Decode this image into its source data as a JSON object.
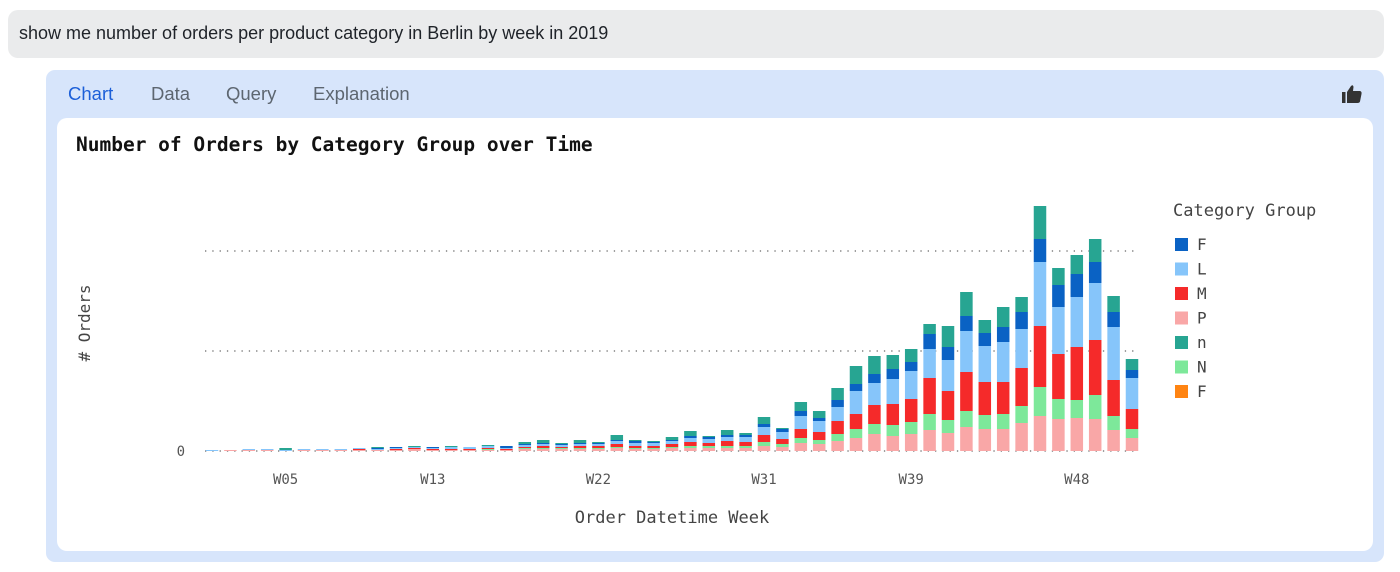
{
  "query": {
    "text": "show me number of orders per product category in Berlin by week in 2019"
  },
  "tabs": [
    {
      "label": "Chart",
      "active": true
    },
    {
      "label": "Data",
      "active": false
    },
    {
      "label": "Query",
      "active": false
    },
    {
      "label": "Explanation",
      "active": false
    }
  ],
  "feedback": {
    "icon": "thumbs-up-icon"
  },
  "colors": {
    "accent": "#1c5fd8",
    "panel": "#d7e5fb"
  },
  "chart_data": {
    "type": "bar",
    "stacked": true,
    "title": "Number of Orders by Category Group over Time",
    "xlabel": "Order Datetime Week",
    "ylabel": "# Orders",
    "x_tick_labels": [
      "W05",
      "W13",
      "W22",
      "W31",
      "W39",
      "W48"
    ],
    "y_tick_labels": [
      "0"
    ],
    "ylim": [
      0,
      250
    ],
    "gridlines": [
      100,
      200
    ],
    "grid": "dotted-horizontal",
    "legend": {
      "title": "Category Group",
      "position": "right"
    },
    "categories": [
      "W01",
      "W02",
      "W03",
      "W04",
      "W05",
      "W06",
      "W07",
      "W08",
      "W09",
      "W10",
      "W11",
      "W12",
      "W13",
      "W14",
      "W15",
      "W16",
      "W17",
      "W18",
      "W19",
      "W20",
      "W21",
      "W22",
      "W23",
      "W24",
      "W25",
      "W26",
      "W27",
      "W28",
      "W29",
      "W30",
      "W31",
      "W32",
      "W33",
      "W34",
      "W35",
      "W36",
      "W37",
      "W38",
      "W39",
      "W40",
      "W41",
      "W42",
      "W43",
      "W44",
      "W45",
      "W46",
      "W47",
      "W48",
      "W49",
      "W50",
      "W51"
    ],
    "legend_order": [
      5,
      4,
      3,
      1,
      6,
      2,
      0
    ],
    "series": [
      {
        "name": "F",
        "color": "#ff8412",
        "values": [
          0,
          0,
          0,
          0,
          0,
          0,
          0,
          0,
          0,
          0,
          0,
          0,
          0,
          0,
          0,
          0,
          0,
          0,
          0,
          0,
          0,
          0,
          0,
          0,
          0,
          0,
          0,
          0,
          0,
          0,
          0,
          0,
          0,
          0,
          0,
          0,
          0,
          0,
          0,
          0,
          0,
          0,
          0,
          0,
          0,
          0,
          0,
          0,
          0,
          0,
          0
        ]
      },
      {
        "name": "P",
        "color": "#f9a7a7",
        "values": [
          0,
          1,
          1,
          1,
          0,
          1,
          1,
          1,
          1,
          1,
          1,
          2,
          1,
          1,
          1,
          1,
          1,
          2,
          2,
          2,
          2,
          2,
          3,
          2,
          2,
          3,
          3,
          3,
          3,
          3,
          5,
          4,
          8,
          7,
          10,
          13,
          17,
          15,
          17,
          21,
          18,
          24,
          22,
          22,
          28,
          35,
          32,
          33,
          32,
          21,
          13
        ]
      },
      {
        "name": "N",
        "color": "#7de89a",
        "values": [
          0,
          0,
          0,
          0,
          0,
          0,
          0,
          0,
          0,
          0,
          0,
          0,
          0,
          0,
          0,
          1,
          0,
          1,
          1,
          1,
          1,
          1,
          1,
          1,
          1,
          1,
          2,
          2,
          2,
          2,
          4,
          3,
          5,
          4,
          7,
          9,
          10,
          11,
          12,
          16,
          13,
          16,
          14,
          15,
          17,
          29,
          20,
          18,
          24,
          14,
          9
        ]
      },
      {
        "name": "M",
        "color": "#f52a2a",
        "values": [
          0,
          0,
          0,
          0,
          0,
          0,
          0,
          0,
          1,
          0,
          1,
          1,
          1,
          1,
          1,
          1,
          1,
          1,
          2,
          1,
          2,
          2,
          3,
          2,
          2,
          3,
          4,
          3,
          5,
          4,
          7,
          5,
          9,
          8,
          13,
          15,
          19,
          21,
          23,
          36,
          29,
          39,
          33,
          32,
          38,
          61,
          45,
          53,
          55,
          36,
          20
        ]
      },
      {
        "name": "L",
        "color": "#86c5fa",
        "values": [
          1,
          0,
          1,
          1,
          1,
          1,
          1,
          1,
          1,
          1,
          1,
          1,
          1,
          2,
          2,
          2,
          1,
          2,
          2,
          2,
          2,
          2,
          3,
          3,
          3,
          3,
          4,
          4,
          4,
          5,
          8,
          7,
          13,
          11,
          14,
          23,
          22,
          25,
          28,
          29,
          31,
          41,
          36,
          40,
          39,
          64,
          47,
          50,
          57,
          53,
          31
        ]
      },
      {
        "name": "F",
        "color": "#0a62c4",
        "values": [
          0,
          0,
          0,
          0,
          0,
          0,
          0,
          0,
          0,
          1,
          1,
          0,
          1,
          0,
          0,
          0,
          2,
          1,
          1,
          1,
          1,
          1,
          1,
          2,
          1,
          1,
          2,
          2,
          2,
          2,
          3,
          3,
          5,
          3,
          7,
          7,
          9,
          10,
          9,
          15,
          13,
          15,
          13,
          15,
          17,
          23,
          22,
          23,
          21,
          15,
          8
        ]
      },
      {
        "name": "n",
        "color": "#27a592",
        "values": [
          0,
          0,
          0,
          0,
          2,
          0,
          0,
          0,
          0,
          1,
          0,
          1,
          0,
          1,
          0,
          1,
          0,
          2,
          3,
          1,
          3,
          1,
          5,
          1,
          1,
          3,
          5,
          1,
          5,
          2,
          7,
          1,
          9,
          7,
          12,
          18,
          18,
          14,
          13,
          10,
          21,
          24,
          13,
          20,
          15,
          33,
          17,
          19,
          23,
          16,
          11
        ]
      }
    ]
  }
}
